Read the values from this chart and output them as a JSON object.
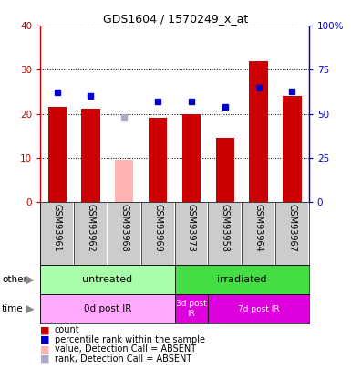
{
  "title": "GDS1604 / 1570249_x_at",
  "samples": [
    "GSM93961",
    "GSM93962",
    "GSM93968",
    "GSM93969",
    "GSM93973",
    "GSM93958",
    "GSM93964",
    "GSM93967"
  ],
  "bar_values": [
    21.5,
    21.2,
    9.5,
    19.0,
    20.0,
    14.5,
    32.0,
    24.0
  ],
  "bar_absent": [
    false,
    false,
    true,
    false,
    false,
    false,
    false,
    false
  ],
  "rank_values_pct": [
    62,
    60,
    48,
    57,
    57,
    54,
    65,
    63
  ],
  "rank_absent": [
    false,
    false,
    true,
    false,
    false,
    false,
    false,
    false
  ],
  "bar_color_present": "#cc0000",
  "bar_color_absent": "#ffb3b3",
  "rank_color_present": "#0000cc",
  "rank_color_absent": "#aaaacc",
  "ylim_left": [
    0,
    40
  ],
  "ylim_right": [
    0,
    100
  ],
  "yticks_left": [
    0,
    10,
    20,
    30,
    40
  ],
  "yticks_right": [
    0,
    25,
    50,
    75,
    100
  ],
  "ytick_labels_right": [
    "0",
    "25",
    "50",
    "75",
    "100%"
  ],
  "bar_width": 0.55,
  "groups_other": [
    {
      "label": "untreated",
      "start": 0,
      "end": 4,
      "color": "#aaffaa"
    },
    {
      "label": "irradiated",
      "start": 4,
      "end": 8,
      "color": "#44dd44"
    }
  ],
  "groups_time": [
    {
      "label": "0d post IR",
      "start": 0,
      "end": 4,
      "color": "#ffaaff",
      "text_color": "black"
    },
    {
      "label": "3d post\nIR",
      "start": 4,
      "end": 5,
      "color": "#dd00dd",
      "text_color": "white"
    },
    {
      "label": "7d post IR",
      "start": 5,
      "end": 8,
      "color": "#dd00dd",
      "text_color": "white"
    }
  ],
  "fig_bg": "#ffffff",
  "plot_bg": "#ffffff",
  "label_area_bg": "#cccccc",
  "tick_color_left": "#cc0000",
  "tick_color_right": "#0000cc",
  "legend_items": [
    {
      "color": "#cc0000",
      "label": "count"
    },
    {
      "color": "#0000cc",
      "label": "percentile rank within the sample"
    },
    {
      "color": "#ffb3b3",
      "label": "value, Detection Call = ABSENT"
    },
    {
      "color": "#aaaacc",
      "label": "rank, Detection Call = ABSENT"
    }
  ]
}
